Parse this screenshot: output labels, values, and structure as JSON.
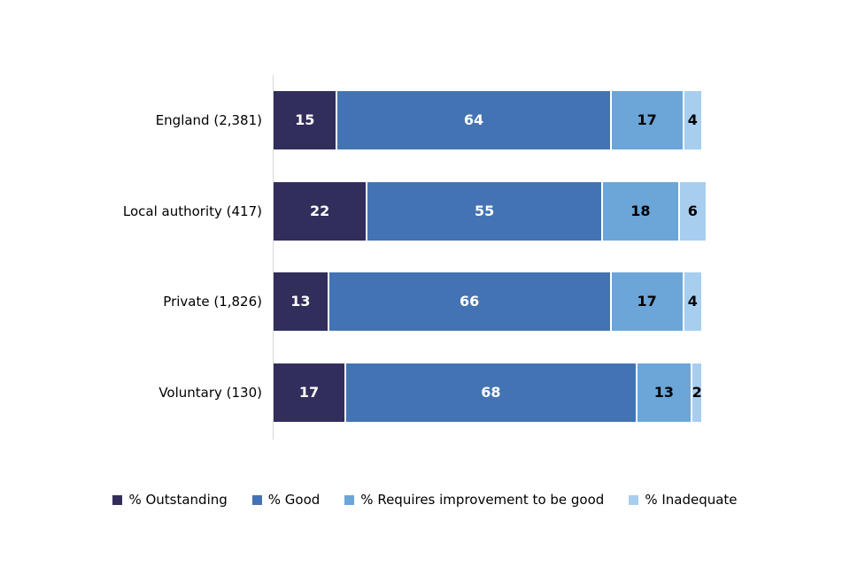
{
  "chart_data": {
    "type": "bar",
    "orientation": "horizontal",
    "stacked": true,
    "title": "",
    "xlabel": "",
    "ylabel": "",
    "xlim": [
      0,
      100
    ],
    "grid": false,
    "legend_position": "bottom",
    "categories": [
      "England (2,381)",
      "Local authority (417)",
      "Private (1,826)",
      "Voluntary (130)"
    ],
    "series": [
      {
        "name": "% Outstanding",
        "color": "#312E5C",
        "label_color": "#ffffff",
        "values": [
          15,
          22,
          13,
          17
        ]
      },
      {
        "name": "% Good",
        "color": "#4473B3",
        "label_color": "#ffffff",
        "values": [
          64,
          55,
          66,
          68
        ]
      },
      {
        "name": "% Requires improvement to be good",
        "color": "#6CA5D8",
        "label_color": "#000000",
        "values": [
          17,
          18,
          17,
          13
        ]
      },
      {
        "name": "% Inadequate",
        "color": "#A7CEEE",
        "label_color": "#000000",
        "values": [
          4,
          6,
          4,
          2
        ]
      }
    ]
  },
  "colors": {
    "background": "#ffffff",
    "axis": "#d6d6d6",
    "text": "#000000"
  }
}
